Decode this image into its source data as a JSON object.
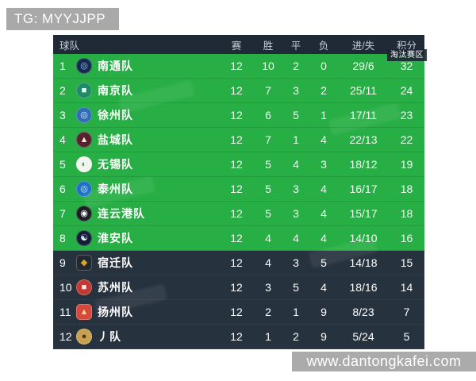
{
  "page": {
    "tg_badge": "TG: MYYJJPP",
    "site_watermark": "www.dantongkafei.com"
  },
  "colors": {
    "qualify_zone_green": "#27ae44",
    "lower_zone_dark": "#27323f",
    "header_bar": "#1f2a36",
    "watermark_gray": "#a9a9a9"
  },
  "table": {
    "zone_badge": "淘汰赛区",
    "headers": {
      "team": "球队",
      "played": "赛",
      "wins": "胜",
      "draws": "平",
      "losses": "负",
      "goals": "进/失",
      "points": "积分"
    },
    "rows": [
      {
        "rank": "1",
        "team": "南通队",
        "played": "12",
        "wins": "10",
        "draws": "2",
        "losses": "0",
        "goals": "29/6",
        "points": "32",
        "zone": "qualify",
        "logo_glyph": "◎",
        "logo_css": "background:#142a4e;color:#9fc2f0;border-radius:50%"
      },
      {
        "rank": "2",
        "team": "南京队",
        "played": "12",
        "wins": "7",
        "draws": "3",
        "losses": "2",
        "goals": "25/11",
        "points": "24",
        "zone": "qualify",
        "logo_glyph": "■",
        "logo_css": "background:#1e8a66;color:#eafff4;border-radius:50%"
      },
      {
        "rank": "3",
        "team": "徐州队",
        "played": "12",
        "wins": "6",
        "draws": "5",
        "losses": "1",
        "goals": "17/11",
        "points": "23",
        "zone": "qualify",
        "logo_glyph": "◎",
        "logo_css": "background:#2f6db5;color:#dbeaff;border-radius:50%"
      },
      {
        "rank": "4",
        "team": "盐城队",
        "played": "12",
        "wins": "7",
        "draws": "1",
        "losses": "4",
        "goals": "22/13",
        "points": "22",
        "zone": "qualify",
        "logo_glyph": "▲",
        "logo_css": "background:#57222d;color:#f5e9d8;border-radius:50%"
      },
      {
        "rank": "5",
        "team": "无锡队",
        "played": "12",
        "wins": "5",
        "draws": "4",
        "losses": "3",
        "goals": "18/12",
        "points": "19",
        "zone": "qualify",
        "logo_glyph": "◐",
        "logo_css": "background:#f2f5ef;color:#3f9e4d;border-radius:50%"
      },
      {
        "rank": "6",
        "team": "泰州队",
        "played": "12",
        "wins": "5",
        "draws": "3",
        "losses": "4",
        "goals": "16/17",
        "points": "18",
        "zone": "qualify",
        "logo_glyph": "◎",
        "logo_css": "background:#1d72c2;color:#d6ecff;border-radius:50%"
      },
      {
        "rank": "7",
        "team": "连云港队",
        "played": "12",
        "wins": "5",
        "draws": "3",
        "losses": "4",
        "goals": "15/17",
        "points": "18",
        "zone": "qualify",
        "logo_glyph": "◉",
        "logo_css": "background:#1c1f24;color:#ffffff;border-radius:50%"
      },
      {
        "rank": "8",
        "team": "淮安队",
        "played": "12",
        "wins": "4",
        "draws": "4",
        "losses": "4",
        "goals": "14/10",
        "points": "16",
        "zone": "qualify",
        "logo_glyph": "☯",
        "logo_css": "background:#122036;color:#e8f1ff;border-radius:50%"
      },
      {
        "rank": "9",
        "team": "宿迁队",
        "played": "12",
        "wins": "4",
        "draws": "3",
        "losses": "5",
        "goals": "14/18",
        "points": "15",
        "zone": "relegation",
        "logo_glyph": "◆",
        "logo_css": "background:#23282f;color:#d9a62e;border-radius:25%"
      },
      {
        "rank": "10",
        "team": "苏州队",
        "played": "12",
        "wins": "3",
        "draws": "5",
        "losses": "4",
        "goals": "18/16",
        "points": "14",
        "zone": "relegation",
        "logo_glyph": "■",
        "logo_css": "background:#bf3a35;color:#ffe9e4;border-radius:50%"
      },
      {
        "rank": "11",
        "team": "扬州队",
        "played": "12",
        "wins": "2",
        "draws": "1",
        "losses": "9",
        "goals": "8/23",
        "points": "7",
        "zone": "relegation",
        "logo_glyph": "▲",
        "logo_css": "background:#d5483b;color:#ffd98f;border-radius:25%"
      },
      {
        "rank": "12",
        "team": "丿队",
        "played": "12",
        "wins": "1",
        "draws": "2",
        "losses": "9",
        "goals": "5/24",
        "points": "5",
        "zone": "relegation",
        "logo_glyph": "●",
        "logo_css": "background:#c7a14f;color:#4a3a1a;border-radius:50%"
      }
    ]
  }
}
